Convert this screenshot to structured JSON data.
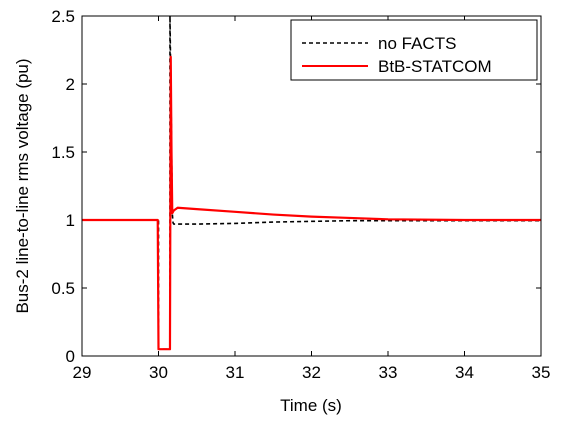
{
  "chart_data": {
    "type": "line",
    "title": "",
    "xlabel": "Time (s)",
    "ylabel": "Bus-2 line-to-line rms voltage (pu)",
    "xlim": [
      29,
      35
    ],
    "ylim": [
      0,
      2.5
    ],
    "x_ticks": [
      29,
      30,
      31,
      32,
      33,
      34,
      35
    ],
    "x_tick_labels": [
      "29",
      "30",
      "31",
      "32",
      "33",
      "34",
      "35"
    ],
    "y_ticks": [
      0,
      0.5,
      1,
      1.5,
      2,
      2.5
    ],
    "y_tick_labels": [
      "0",
      "0.5",
      "1",
      "1.5",
      "2",
      "2.5"
    ],
    "grid": false,
    "legend_position": "top-right",
    "series": [
      {
        "name": "no FACTS",
        "color": "#000000",
        "style": "dashed",
        "x": [
          29,
          30.0,
          30.0,
          30.08,
          30.08,
          30.1,
          30.15,
          30.15,
          30.17,
          30.18,
          30.19,
          30.2,
          30.3,
          30.5,
          31.0,
          31.5,
          32.0,
          32.5,
          33.0,
          34.0,
          35.0
        ],
        "y": [
          1.0,
          1.0,
          0.05,
          0.05,
          0.05,
          0.05,
          0.05,
          2.5,
          1.6,
          1.05,
          0.98,
          0.97,
          0.97,
          0.97,
          0.975,
          0.985,
          0.99,
          0.995,
          0.995,
          0.995,
          0.995
        ]
      },
      {
        "name": "BtB-STATCOM",
        "color": "#ff0000",
        "style": "solid",
        "x": [
          29,
          29.99,
          30.0,
          30.1,
          30.15,
          30.16,
          30.17,
          30.18,
          30.2,
          30.25,
          30.5,
          31.0,
          31.5,
          32.0,
          32.5,
          33.0,
          34.0,
          35.0
        ],
        "y": [
          1.0,
          1.0,
          0.05,
          0.05,
          0.05,
          2.2,
          1.5,
          1.05,
          1.07,
          1.09,
          1.08,
          1.06,
          1.04,
          1.025,
          1.015,
          1.005,
          1.0,
          1.0
        ]
      }
    ]
  }
}
